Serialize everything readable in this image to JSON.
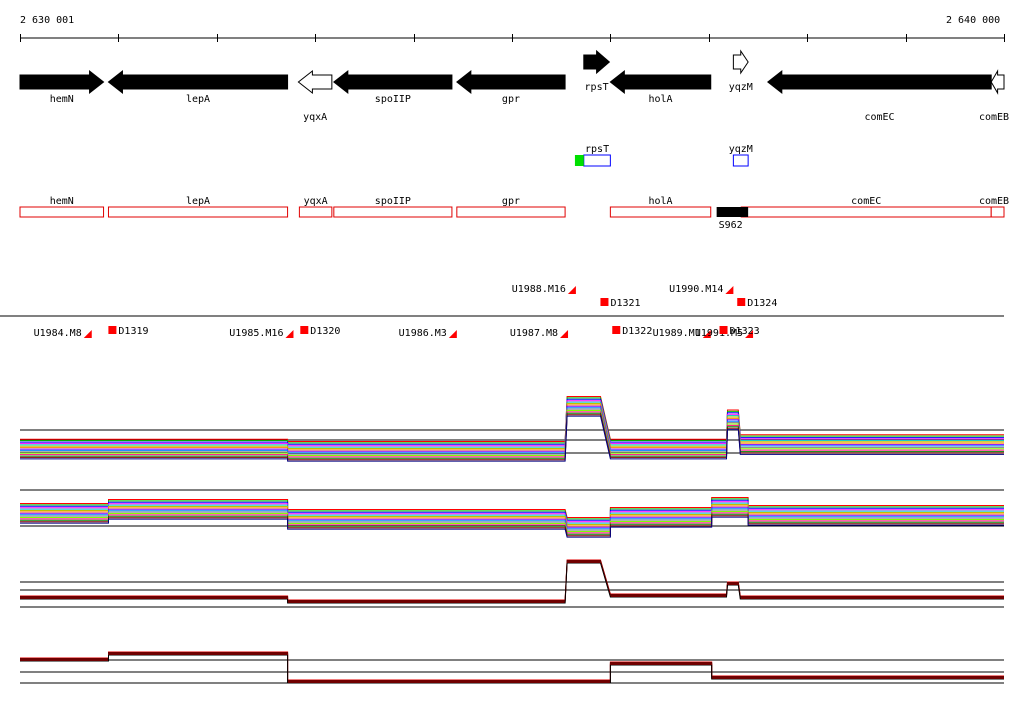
{
  "axis": {
    "start_label": "2 630 001",
    "end_label": "2 640 000",
    "start_bp": 2630001,
    "end_bp": 2640000
  },
  "genes": [
    {
      "name": "hemN",
      "strand": "+",
      "fill": "black",
      "start_bp": 2630001,
      "end_bp": 2630850,
      "label_row": "above"
    },
    {
      "name": "lepA",
      "strand": "-",
      "fill": "black",
      "start_bp": 2630900,
      "end_bp": 2632720,
      "label_row": "above"
    },
    {
      "name": "yqxA",
      "strand": "-",
      "fill": "white",
      "start_bp": 2632830,
      "end_bp": 2633170,
      "label_row": "below"
    },
    {
      "name": "spoIIP",
      "strand": "-",
      "fill": "black",
      "start_bp": 2633190,
      "end_bp": 2634390,
      "label_row": "above"
    },
    {
      "name": "gpr",
      "strand": "-",
      "fill": "black",
      "start_bp": 2634440,
      "end_bp": 2635540,
      "label_row": "above"
    },
    {
      "name": "rpsT",
      "strand": "+",
      "fill": "black",
      "start_bp": 2635730,
      "end_bp": 2635990,
      "label_row": "below",
      "raised": true
    },
    {
      "name": "holA",
      "strand": "-",
      "fill": "black",
      "start_bp": 2636000,
      "end_bp": 2637020,
      "label_row": "above"
    },
    {
      "name": "yqzM",
      "strand": "+",
      "fill": "white",
      "start_bp": 2637250,
      "end_bp": 2637400,
      "label_row": "below",
      "raised": true
    },
    {
      "name": "comEC",
      "strand": "-",
      "fill": "black",
      "start_bp": 2637600,
      "end_bp": 2639870,
      "label_row": "below"
    },
    {
      "name": "comEB",
      "strand": "-",
      "fill": "white",
      "start_bp": 2639870,
      "end_bp": 2640000,
      "label_row": "below"
    }
  ],
  "small_features": [
    {
      "name": "rpsT",
      "start_bp": 2635730,
      "end_bp": 2636000,
      "green_start_bp": 2635640,
      "green_end_bp": 2635730
    },
    {
      "name": "yqzM",
      "start_bp": 2637250,
      "end_bp": 2637400
    }
  ],
  "annotation_boxes": [
    {
      "name": "hemN",
      "start_bp": 2630001,
      "end_bp": 2630850
    },
    {
      "name": "lepA",
      "start_bp": 2630900,
      "end_bp": 2632720
    },
    {
      "name": "yqxA",
      "start_bp": 2632840,
      "end_bp": 2633170
    },
    {
      "name": "spoIIP",
      "start_bp": 2633190,
      "end_bp": 2634390
    },
    {
      "name": "gpr",
      "start_bp": 2634440,
      "end_bp": 2635540
    },
    {
      "name": "holA",
      "start_bp": 2636000,
      "end_bp": 2637020
    },
    {
      "name": "comEC",
      "start_bp": 2637330,
      "end_bp": 2639870
    },
    {
      "name": "comEB",
      "start_bp": 2639870,
      "end_bp": 2640000
    }
  ],
  "s_marker": {
    "name": "S962",
    "start_bp": 2637080,
    "end_bp": 2637400
  },
  "transcripts": {
    "upstream": [
      {
        "name": "U1984.M8",
        "end_bp": 2630730,
        "row": "low"
      },
      {
        "name": "U1985.M16",
        "end_bp": 2632780,
        "row": "low"
      },
      {
        "name": "U1986.M3",
        "end_bp": 2634440,
        "row": "low"
      },
      {
        "name": "U1987.M8",
        "end_bp": 2635570,
        "row": "low"
      },
      {
        "name": "U1988.M16",
        "end_bp": 2635650,
        "row": "high"
      },
      {
        "name": "U1989.M1",
        "end_bp": 2637020,
        "row": "low"
      },
      {
        "name": "U1990.M14",
        "end_bp": 2637250,
        "row": "high"
      },
      {
        "name": "U1991.M5",
        "end_bp": 2637450,
        "row": "low"
      }
    ],
    "downstream": [
      {
        "name": "D1319",
        "start_bp": 2630940,
        "row": "low"
      },
      {
        "name": "D1320",
        "start_bp": 2632890,
        "row": "low"
      },
      {
        "name": "D1321",
        "start_bp": 2635940,
        "row": "mid"
      },
      {
        "name": "D1322",
        "start_bp": 2636060,
        "row": "low"
      },
      {
        "name": "D1324",
        "start_bp": 2637330,
        "row": "mid"
      },
      {
        "name": "D1323",
        "start_bp": 2637150,
        "row": "low"
      }
    ]
  },
  "expression_profiles": [
    {
      "panel": "all-conditions-forward",
      "baseline": 0.0,
      "segments": [
        {
          "start_bp": 2630001,
          "end_bp": 2632720,
          "level": 0.05
        },
        {
          "start_bp": 2632720,
          "end_bp": 2635540,
          "level": 0.0
        },
        {
          "start_bp": 2635560,
          "end_bp": 2635900,
          "level": 1.0
        },
        {
          "start_bp": 2636000,
          "end_bp": 2637180,
          "level": 0.05
        },
        {
          "start_bp": 2637190,
          "end_bp": 2637300,
          "level": 0.7
        },
        {
          "start_bp": 2637320,
          "end_bp": 2640000,
          "level": 0.15
        }
      ]
    },
    {
      "panel": "all-conditions-reverse",
      "baseline": 0.0,
      "segments": [
        {
          "start_bp": 2630001,
          "end_bp": 2630900,
          "level": 0.4
        },
        {
          "start_bp": 2630900,
          "end_bp": 2632720,
          "level": 0.5
        },
        {
          "start_bp": 2632720,
          "end_bp": 2635540,
          "level": 0.25
        },
        {
          "start_bp": 2635560,
          "end_bp": 2636000,
          "level": 0.05
        },
        {
          "start_bp": 2636000,
          "end_bp": 2637030,
          "level": 0.3
        },
        {
          "start_bp": 2637030,
          "end_bp": 2637400,
          "level": 0.55
        },
        {
          "start_bp": 2637400,
          "end_bp": 2640000,
          "level": 0.35
        }
      ]
    },
    {
      "panel": "selected-forward",
      "baseline": 0.0,
      "segments": [
        {
          "start_bp": 2630001,
          "end_bp": 2632720,
          "level": 0.1
        },
        {
          "start_bp": 2632720,
          "end_bp": 2635540,
          "level": 0.0
        },
        {
          "start_bp": 2635560,
          "end_bp": 2635900,
          "level": 1.0
        },
        {
          "start_bp": 2636000,
          "end_bp": 2637180,
          "level": 0.15
        },
        {
          "start_bp": 2637190,
          "end_bp": 2637300,
          "level": 0.45
        },
        {
          "start_bp": 2637320,
          "end_bp": 2640000,
          "level": 0.1
        }
      ]
    },
    {
      "panel": "selected-reverse",
      "baseline": 0.0,
      "segments": [
        {
          "start_bp": 2630001,
          "end_bp": 2630900,
          "level": 0.55
        },
        {
          "start_bp": 2630900,
          "end_bp": 2632720,
          "level": 0.7
        },
        {
          "start_bp": 2632720,
          "end_bp": 2635540,
          "level": 0.0
        },
        {
          "start_bp": 2635560,
          "end_bp": 2636000,
          "level": 0.0
        },
        {
          "start_bp": 2636000,
          "end_bp": 2637030,
          "level": 0.45
        },
        {
          "start_bp": 2637030,
          "end_bp": 2640000,
          "level": 0.1
        }
      ]
    }
  ],
  "colors": {
    "gene_fill": "#000000",
    "annotation_red": "#e00000",
    "marker_red": "#ff0000",
    "small_feature_blue": "#0000ff",
    "small_feature_green": "#00e000",
    "selected_red_trace": "#e00000",
    "profile_palette": [
      "#ff0000",
      "#00c000",
      "#0000ff",
      "#ff00ff",
      "#00c0c0",
      "#c0c000",
      "#ff8000",
      "#8000ff",
      "#0080ff",
      "#808080",
      "#80ff00",
      "#ff0080",
      "#008000",
      "#800000",
      "#000080"
    ]
  }
}
